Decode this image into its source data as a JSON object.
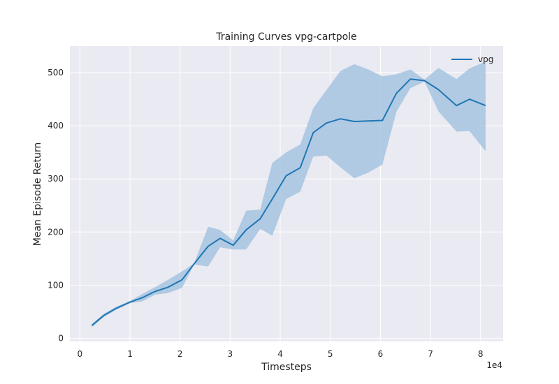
{
  "chart_data": {
    "type": "line",
    "title": "Training Curves vpg-cartpole",
    "xlabel": "Timesteps",
    "ylabel": "Mean Episode Return",
    "x_offset_label": "1e4",
    "x_scale_exponent": 4,
    "xlim": [
      -0.2,
      8.45
    ],
    "ylim": [
      -6,
      550
    ],
    "xticks": [
      0,
      1,
      2,
      3,
      4,
      5,
      6,
      7,
      8
    ],
    "xtick_labels": [
      "0",
      "1",
      "2",
      "3",
      "4",
      "5",
      "6",
      "7",
      "8"
    ],
    "yticks": [
      0,
      100,
      200,
      300,
      400,
      500
    ],
    "ytick_labels": [
      "0",
      "100",
      "200",
      "300",
      "400",
      "500"
    ],
    "grid": true,
    "legend_position": "top-right",
    "colors": {
      "background": "#eaeaf2",
      "grid": "#ffffff",
      "line": "#1f77b4",
      "band": "#a6c4e0"
    },
    "series": [
      {
        "name": "vpg",
        "x": [
          0.24,
          0.48,
          0.72,
          1.0,
          1.24,
          1.5,
          1.76,
          2.04,
          2.28,
          2.56,
          2.8,
          3.06,
          3.32,
          3.6,
          3.84,
          4.12,
          4.4,
          4.66,
          4.92,
          5.2,
          5.48,
          5.76,
          6.04,
          6.32,
          6.6,
          6.88,
          7.16,
          7.52,
          7.78,
          8.1
        ],
        "mean": [
          24,
          43,
          56,
          68,
          76,
          88,
          96,
          110,
          140,
          173,
          188,
          175,
          204,
          225,
          262,
          306,
          321,
          387,
          405,
          413,
          408,
          409,
          410,
          461,
          488,
          485,
          468,
          438,
          450,
          438
        ],
        "upper": [
          27,
          46,
          59,
          70,
          83,
          96,
          110,
          126,
          141,
          210,
          204,
          184,
          240,
          242,
          330,
          350,
          365,
          433,
          467,
          503,
          516,
          506,
          493,
          497,
          506,
          487,
          509,
          488,
          508,
          521
        ],
        "lower": [
          21,
          40,
          53,
          66,
          69,
          82,
          85,
          95,
          139,
          135,
          171,
          167,
          167,
          206,
          193,
          262,
          276,
          342,
          344,
          322,
          301,
          312,
          327,
          426,
          471,
          483,
          427,
          389,
          390,
          352
        ]
      }
    ]
  }
}
